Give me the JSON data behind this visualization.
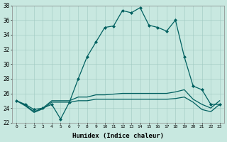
{
  "xlabel": "Humidex (Indice chaleur)",
  "ylabel": "",
  "background_color": "#c8e8e0",
  "grid_color": "#a0c8c0",
  "line_color": "#006060",
  "xlim": [
    -0.5,
    23.5
  ],
  "ylim": [
    22,
    38
  ],
  "yticks": [
    22,
    24,
    26,
    28,
    30,
    32,
    34,
    36,
    38
  ],
  "xticks": [
    0,
    1,
    2,
    3,
    4,
    5,
    6,
    7,
    8,
    9,
    10,
    11,
    12,
    13,
    14,
    15,
    16,
    17,
    18,
    19,
    20,
    21,
    22,
    23
  ],
  "series1_x": [
    0,
    1,
    2,
    3,
    4,
    5,
    6,
    7,
    8,
    9,
    10,
    11,
    12,
    13,
    14,
    15,
    16,
    17,
    18,
    19,
    20,
    21,
    22,
    23
  ],
  "series1_y": [
    25.0,
    24.5,
    23.8,
    24.0,
    24.5,
    22.5,
    24.8,
    28.0,
    31.0,
    33.0,
    35.0,
    35.2,
    37.3,
    37.0,
    37.7,
    35.3,
    35.0,
    34.5,
    36.0,
    31.0,
    27.0,
    26.5,
    24.5,
    24.5
  ],
  "series2_x": [
    0,
    1,
    2,
    3,
    4,
    5,
    6,
    7,
    8,
    9,
    10,
    11,
    12,
    13,
    14,
    15,
    16,
    17,
    18,
    19,
    20,
    21,
    22,
    23
  ],
  "series2_y": [
    25.0,
    24.4,
    23.5,
    24.0,
    25.0,
    25.0,
    25.0,
    25.5,
    25.5,
    25.8,
    25.8,
    25.9,
    26.0,
    26.0,
    26.0,
    26.0,
    26.0,
    26.0,
    26.2,
    26.5,
    25.2,
    24.5,
    24.0,
    25.0
  ],
  "series3_x": [
    0,
    1,
    2,
    3,
    4,
    5,
    6,
    7,
    8,
    9,
    10,
    11,
    12,
    13,
    14,
    15,
    16,
    17,
    18,
    19,
    20,
    21,
    22,
    23
  ],
  "series3_y": [
    25.0,
    24.3,
    23.4,
    23.9,
    24.8,
    24.8,
    24.8,
    25.0,
    25.0,
    25.2,
    25.2,
    25.2,
    25.2,
    25.2,
    25.2,
    25.2,
    25.2,
    25.2,
    25.3,
    25.5,
    24.8,
    23.8,
    23.5,
    24.5
  ],
  "line_width": 0.9,
  "marker": "D",
  "marker_size": 2.0
}
